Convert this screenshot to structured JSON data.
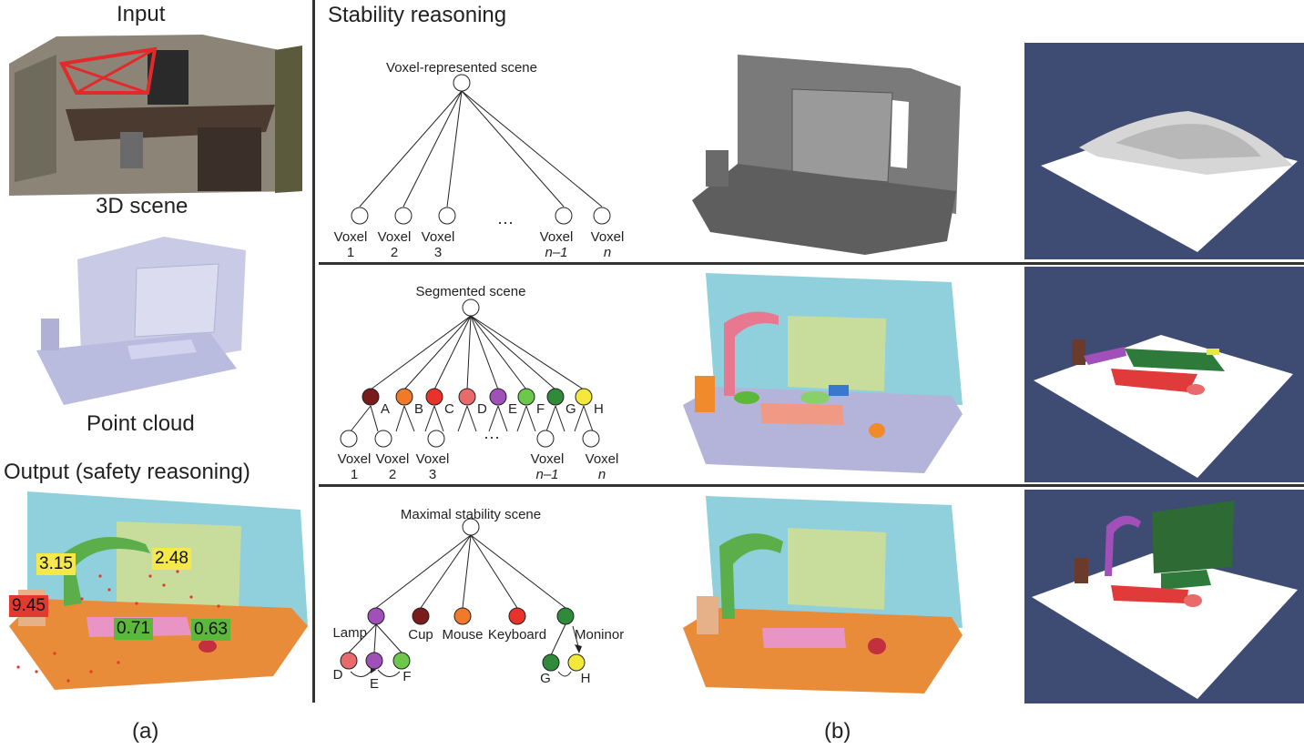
{
  "left": {
    "input_label": "Input",
    "scene3d_label": "3D scene",
    "pointcloud_label": "Point cloud",
    "output_label": "Output (safety reasoning)",
    "scores": [
      {
        "value": "3.15",
        "color": "#f4e84a"
      },
      {
        "value": "2.48",
        "color": "#f4e84a"
      },
      {
        "value": "9.45",
        "color": "#e23a2e"
      },
      {
        "value": "0.71",
        "color": "#5cb83a"
      },
      {
        "value": "0.63",
        "color": "#5cb83a"
      }
    ],
    "panel_label": "(a)"
  },
  "right": {
    "header": "Stability reasoning",
    "panel_label": "(b)",
    "row1": {
      "root": "Voxel-represented scene",
      "voxel": "Voxel",
      "leaves": [
        "1",
        "2",
        "3",
        "n–1",
        "n"
      ],
      "ellipsis": "···"
    },
    "row2": {
      "root": "Segmented scene",
      "voxel": "Voxel",
      "segments": [
        {
          "label": "A",
          "color": "#7a1c1c"
        },
        {
          "label": "B",
          "color": "#f07a2a"
        },
        {
          "label": "C",
          "color": "#e8322a"
        },
        {
          "label": "D",
          "color": "#e86a6a"
        },
        {
          "label": "E",
          "color": "#a050b8"
        },
        {
          "label": "F",
          "color": "#6cc84a"
        },
        {
          "label": "G",
          "color": "#2f8a3a"
        },
        {
          "label": "H",
          "color": "#f4e83a"
        }
      ],
      "leaves": [
        "1",
        "2",
        "3",
        "n–1",
        "n"
      ],
      "ellipsis": "···"
    },
    "row3": {
      "root": "Maximal stability scene",
      "objects": [
        {
          "label": "Lamp",
          "color": "#a050b8"
        },
        {
          "label": "Cup",
          "color": "#7a1c1c"
        },
        {
          "label": "Mouse",
          "color": "#f07a2a"
        },
        {
          "label": "Keyboard",
          "color": "#e8322a"
        },
        {
          "label": "Moninor",
          "color": "#2f8a3a"
        }
      ],
      "lamp_parts": [
        {
          "label": "D",
          "color": "#e86a6a"
        },
        {
          "label": "E",
          "color": "#a050b8"
        },
        {
          "label": "F",
          "color": "#6cc84a"
        }
      ],
      "monitor_parts": [
        {
          "label": "G",
          "color": "#2f8a3a"
        },
        {
          "label": "H",
          "color": "#f4e83a"
        }
      ]
    }
  }
}
